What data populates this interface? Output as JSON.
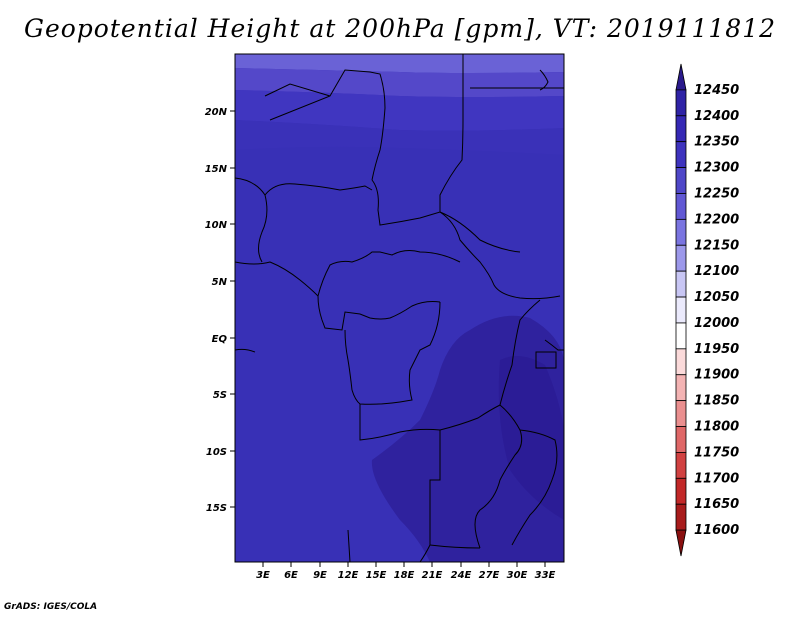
{
  "title": "Geopotential Height at 200hPa [gpm], VT: 2019111812",
  "footer": "GrADS: IGES/COLA",
  "map": {
    "lat_ticks": [
      "20N",
      "15N",
      "10N",
      "5N",
      "EQ",
      "5S",
      "10S",
      "15S"
    ],
    "lon_ticks": [
      "3E",
      "6E",
      "9E",
      "12E",
      "15E",
      "18E",
      "21E",
      "24E",
      "27E",
      "30E",
      "33E"
    ]
  },
  "colorbar": {
    "labels": [
      "12450",
      "12400",
      "12350",
      "12300",
      "12250",
      "12200",
      "12150",
      "12100",
      "12050",
      "12000",
      "11950",
      "11900",
      "11850",
      "11800",
      "11750",
      "11700",
      "11650",
      "11600"
    ],
    "colors": [
      "#2a1a8c",
      "#2f23a6",
      "#3528b4",
      "#3e33be",
      "#4f47c8",
      "#6158d4",
      "#7a74e0",
      "#9c98ea",
      "#c8c6f4",
      "#ebeafc",
      "#ffffff",
      "#fbdada",
      "#f3b3b3",
      "#ea8f8f",
      "#df6767",
      "#d14141",
      "#c22828",
      "#a81c1c",
      "#8a1010"
    ]
  }
}
